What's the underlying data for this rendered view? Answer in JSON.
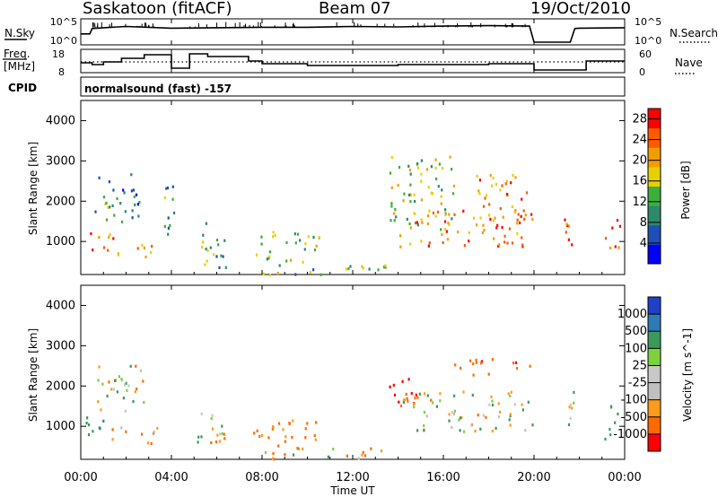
{
  "header": {
    "station": "Saskatoon (fitACF)",
    "beam": "Beam 07",
    "date": "19/Oct/2010"
  },
  "noise_panel": {
    "left_label": "N.Sky",
    "right_label": "N.Search",
    "left_ticks": [
      "10^5",
      "10^0"
    ],
    "right_ticks": [
      "10^5",
      "10^0"
    ]
  },
  "freq_panel": {
    "left_label_line1": "Freq.",
    "left_label_line2": "[MHz]",
    "right_label": "Nave",
    "left_ticks": [
      "18",
      "8"
    ],
    "right_ticks": [
      "60",
      "0"
    ]
  },
  "cpid": {
    "label": "CPID",
    "program": "normalsound (fast) -157"
  },
  "time_axis": {
    "label": "Time UT",
    "ticks": [
      "00:00",
      "04:00",
      "08:00",
      "12:00",
      "16:00",
      "20:00",
      "00:00"
    ]
  },
  "colors": {
    "power_scale": [
      "#0000ff",
      "#1f4fb4",
      "#2b8a6a",
      "#3cae3c",
      "#e8d000",
      "#f39c00",
      "#ff5a00",
      "#ff0000"
    ],
    "velocity_scale": [
      "#2140c8",
      "#2d7ab4",
      "#3a9a5a",
      "#7cd23c",
      "#c8c8c8",
      "#bfbfbf",
      "#ff9b1a",
      "#ff6a00",
      "#ff0000"
    ]
  },
  "chart_data": [
    {
      "type": "heatmap",
      "title": "",
      "xlabel": "",
      "ylabel": "Slant Range [km]",
      "xlim": [
        "00:00",
        "00:00"
      ],
      "ylim": [
        180,
        4500
      ],
      "yticks": [
        1000,
        2000,
        3000,
        4000
      ],
      "colorbar_label": "Power [dB]",
      "colorbar_ticks": [
        4,
        8,
        12,
        16,
        20,
        24,
        28
      ],
      "colorbar_range": [
        0,
        30
      ],
      "echo_regions": [
        {
          "t_start": 0.2,
          "t_end": 1.4,
          "r_min": 700,
          "r_max": 1300,
          "level": 24
        },
        {
          "t_start": 0.6,
          "t_end": 2.6,
          "r_min": 1400,
          "r_max": 2700,
          "level": 10
        },
        {
          "t_start": 1.6,
          "t_end": 3.4,
          "r_min": 600,
          "r_max": 1000,
          "level": 18
        },
        {
          "t_start": 3.6,
          "t_end": 4.2,
          "r_min": 1200,
          "r_max": 2900,
          "level": 9
        },
        {
          "t_start": 5.0,
          "t_end": 6.4,
          "r_min": 350,
          "r_max": 1500,
          "level": 12
        },
        {
          "t_start": 7.6,
          "t_end": 10.5,
          "r_min": 500,
          "r_max": 1300,
          "level": 14
        },
        {
          "t_start": 8.0,
          "t_end": 13.5,
          "r_min": 200,
          "r_max": 500,
          "level": 12
        },
        {
          "t_start": 13.6,
          "t_end": 16.5,
          "r_min": 1300,
          "r_max": 3200,
          "level": 16
        },
        {
          "t_start": 14.0,
          "t_end": 19.9,
          "r_min": 900,
          "r_max": 1800,
          "level": 22
        },
        {
          "t_start": 17.3,
          "t_end": 19.8,
          "r_min": 1600,
          "r_max": 2800,
          "level": 22
        },
        {
          "t_start": 21.3,
          "t_end": 21.8,
          "r_min": 700,
          "r_max": 2000,
          "level": 24
        },
        {
          "t_start": 23.1,
          "t_end": 23.8,
          "r_min": 700,
          "r_max": 1600,
          "level": 26
        }
      ]
    },
    {
      "type": "heatmap",
      "title": "",
      "xlabel": "Time UT",
      "ylabel": "Slant Range [km]",
      "xlim": [
        "00:00",
        "00:00"
      ],
      "ylim": [
        180,
        4500
      ],
      "yticks": [
        1000,
        2000,
        3000,
        4000
      ],
      "colorbar_label": "Velocity [m s^-1]",
      "colorbar_ticks": [
        1000,
        500,
        100,
        25,
        -25,
        -100,
        -500,
        -1000
      ],
      "echo_regions": [
        {
          "t_start": 0.2,
          "t_end": 1.2,
          "r_min": 700,
          "r_max": 1400,
          "velocity": 200
        },
        {
          "t_start": 1.2,
          "t_end": 3.4,
          "r_min": 600,
          "r_max": 1000,
          "velocity": -80
        },
        {
          "t_start": 0.6,
          "t_end": 2.8,
          "r_min": 1400,
          "r_max": 2600,
          "velocity": 0
        },
        {
          "t_start": 5.0,
          "t_end": 6.4,
          "r_min": 400,
          "r_max": 1400,
          "velocity": 0
        },
        {
          "t_start": 7.6,
          "t_end": 10.5,
          "r_min": 500,
          "r_max": 1200,
          "velocity": -150
        },
        {
          "t_start": 8.0,
          "t_end": 13.5,
          "r_min": 200,
          "r_max": 500,
          "velocity": -50
        },
        {
          "t_start": 13.6,
          "t_end": 14.8,
          "r_min": 1600,
          "r_max": 2400,
          "velocity": -600
        },
        {
          "t_start": 14.0,
          "t_end": 19.9,
          "r_min": 900,
          "r_max": 1900,
          "velocity": 0
        },
        {
          "t_start": 16.4,
          "t_end": 19.8,
          "r_min": 2300,
          "r_max": 2700,
          "velocity": -400
        },
        {
          "t_start": 21.3,
          "t_end": 21.8,
          "r_min": 700,
          "r_max": 2000,
          "velocity": 0
        },
        {
          "t_start": 23.1,
          "t_end": 23.8,
          "r_min": 700,
          "r_max": 1600,
          "velocity": 150
        }
      ]
    },
    {
      "type": "line",
      "title": "",
      "ylabel": "N.Sky",
      "series": [
        {
          "name": "N.Sky",
          "x": [
            0,
            0.4,
            0.5,
            1,
            2,
            4,
            6,
            8,
            10,
            12,
            14,
            16,
            18,
            19.8,
            20.0,
            21.6,
            21.8,
            22,
            24
          ],
          "values": [
            2.0,
            2.0,
            3.3,
            3.5,
            3.8,
            3.4,
            3.5,
            3.6,
            3.6,
            3.8,
            3.7,
            3.9,
            4.0,
            3.9,
            0.0,
            0.0,
            3.3,
            3.4,
            3.5
          ]
        }
      ]
    },
    {
      "type": "line",
      "title": "",
      "ylabel": "Freq. [MHz]",
      "ylim": [
        8,
        18
      ],
      "series": [
        {
          "name": "Freq.",
          "x": [
            0,
            0.5,
            1.0,
            1.8,
            2.8,
            3.6,
            4.0,
            4.8,
            5.6,
            7.4,
            8.0,
            10.0,
            12.0,
            14.0,
            16.0,
            18.0,
            19.8,
            20.0,
            21.7,
            22.3,
            24
          ],
          "values": [
            12.0,
            11.0,
            12.5,
            14.5,
            16.5,
            16.5,
            9.0,
            17.0,
            15.5,
            13.0,
            11.5,
            10.5,
            10.5,
            11.0,
            11.0,
            11.5,
            11.5,
            8.0,
            8.0,
            13.0,
            13.0
          ]
        }
      ]
    }
  ]
}
